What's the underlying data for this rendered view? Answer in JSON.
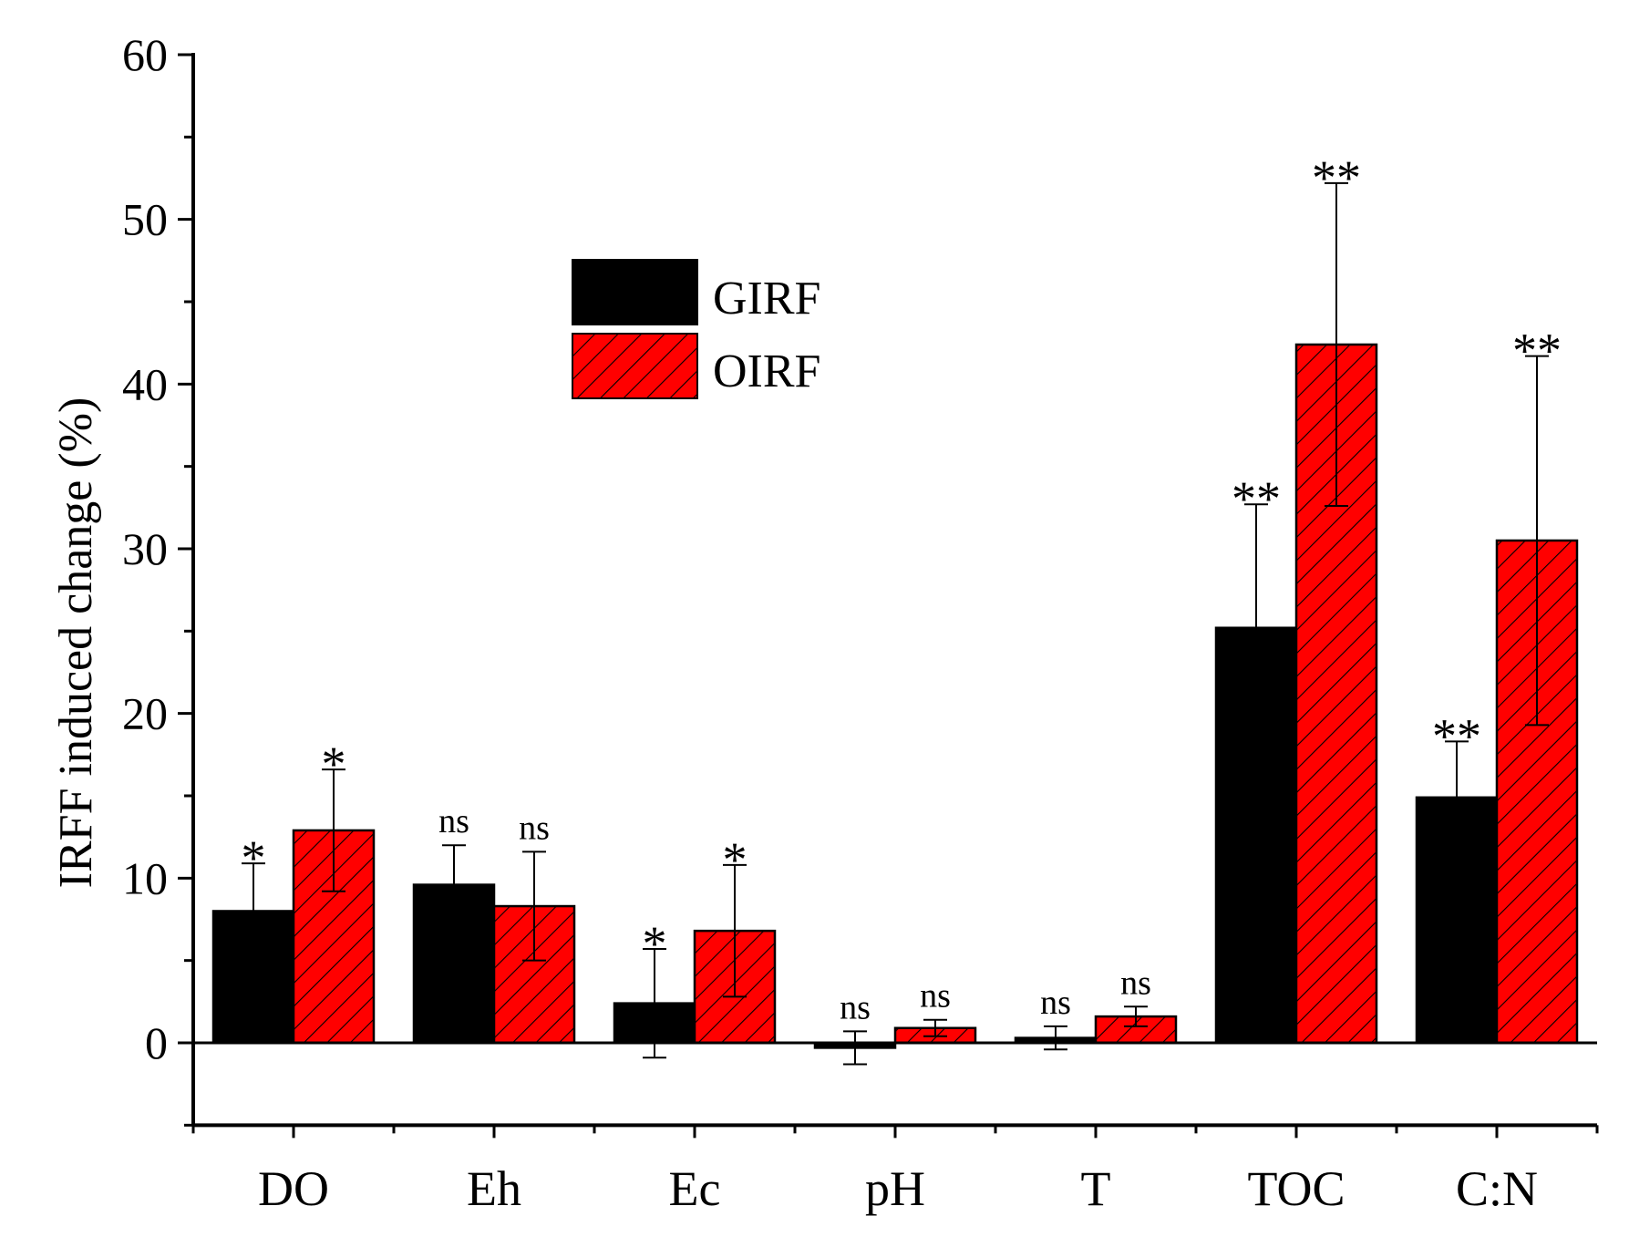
{
  "chart_data": {
    "type": "bar",
    "title": "",
    "xlabel": "",
    "ylabel": "IRFF induced change (%)",
    "ylim": [
      -5,
      60
    ],
    "yticks": [
      0,
      10,
      20,
      30,
      40,
      50,
      60
    ],
    "categories": [
      "DO",
      "Eh",
      "Ec",
      "pH",
      "T",
      "TOC",
      "C:N"
    ],
    "legend_position": "top-center",
    "series": [
      {
        "name": "GIRF",
        "color": "#000000",
        "pattern": "solid",
        "values": [
          8.0,
          9.6,
          2.4,
          -0.3,
          0.3,
          25.2,
          14.9
        ],
        "errors": [
          2.9,
          2.4,
          3.3,
          1.0,
          0.7,
          7.5,
          3.4
        ],
        "significance": [
          "*",
          "ns",
          "*",
          "ns",
          "ns",
          "**",
          "**"
        ]
      },
      {
        "name": "OIRF",
        "color": "#ff0000",
        "pattern": "hatch",
        "values": [
          12.9,
          8.3,
          6.8,
          0.9,
          1.6,
          42.4,
          30.5
        ],
        "errors": [
          3.7,
          3.3,
          4.0,
          0.5,
          0.6,
          9.8,
          11.2
        ],
        "significance": [
          "*",
          "ns",
          "*",
          "ns",
          "ns",
          "**",
          "**"
        ]
      }
    ]
  }
}
